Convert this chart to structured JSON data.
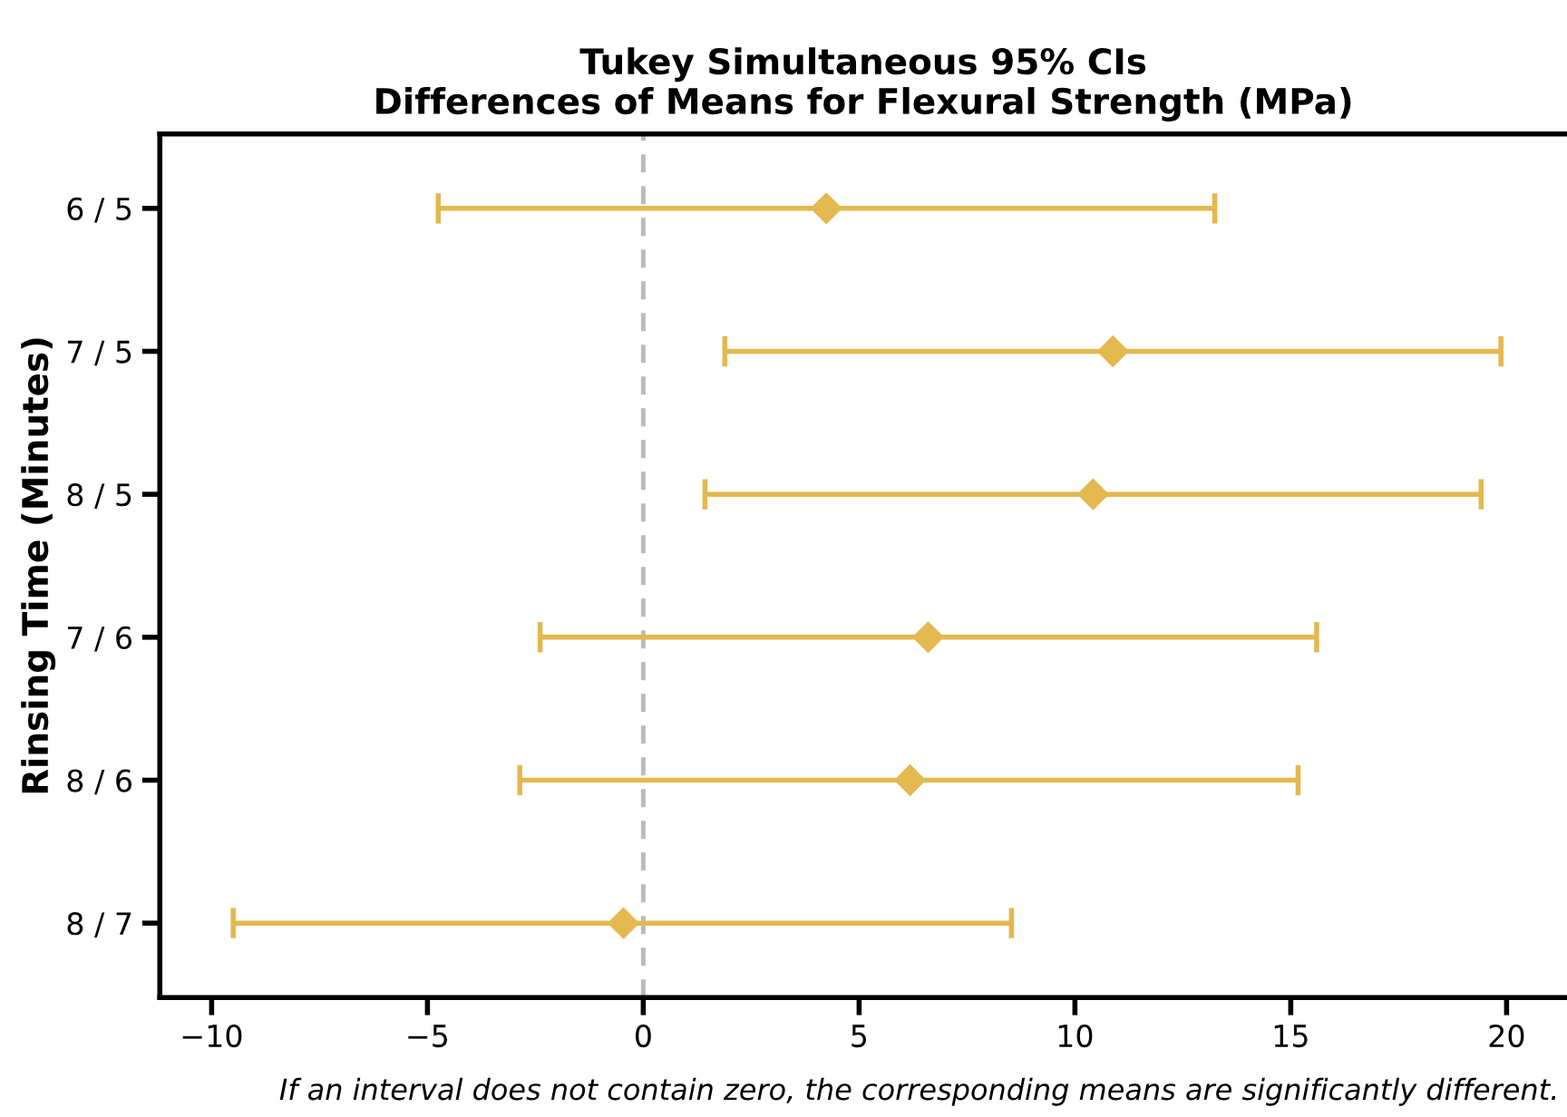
{
  "chart_data": {
    "type": "scatter",
    "orientation": "horizontal",
    "title": "Tukey Simultaneous 95% CIs\nDifferences of Means for Flexural Strength (MPa)",
    "ylabel": "Rinsing Time (Minutes)",
    "categories": [
      "6 / 5",
      "7 / 5",
      "8 / 5",
      "7 / 6",
      "8 / 6",
      "8 / 7"
    ],
    "values": [
      4.24,
      10.88,
      10.42,
      6.6,
      6.18,
      -0.46
    ],
    "errors": [
      [
        -4.75,
        13.24
      ],
      [
        1.89,
        19.87
      ],
      [
        1.43,
        19.41
      ],
      [
        -2.39,
        15.6
      ],
      [
        -2.86,
        15.17
      ],
      [
        -9.5,
        8.53
      ]
    ],
    "color": "#e3b84f",
    "marker": "diamond",
    "grid": false,
    "xlim": [
      -11.2,
      21.4
    ],
    "xticks": [
      {
        "value": -10,
        "label": "−10"
      },
      {
        "value": -5,
        "label": "−5"
      },
      0,
      5,
      10,
      15,
      20
    ],
    "ref_lines": [
      {
        "axis": "x",
        "value": 0,
        "label": null,
        "color": "#bbbbbb",
        "line_style": "dashed"
      }
    ],
    "annotations": [
      "If an interval does not contain zero, the corresponding means are significantly different."
    ]
  }
}
